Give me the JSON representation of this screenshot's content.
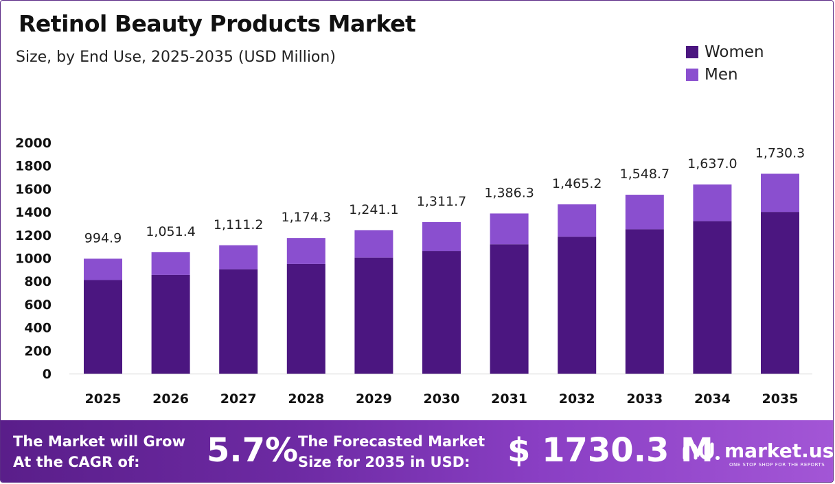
{
  "header": {
    "title": "Retinol Beauty Products Market",
    "subtitle": "Size, by End Use, 2025-2035 (USD Million)"
  },
  "legend": [
    {
      "label": "Women",
      "color": "#4b1680"
    },
    {
      "label": "Men",
      "color": "#8a4fcf"
    }
  ],
  "chart_data": {
    "type": "bar",
    "stacked": true,
    "categories": [
      "2025",
      "2026",
      "2027",
      "2028",
      "2029",
      "2030",
      "2031",
      "2032",
      "2033",
      "2034",
      "2035"
    ],
    "series": [
      {
        "name": "Women",
        "color": "#4b1680",
        "values": [
          810,
          855,
          903,
          950,
          1005,
          1062,
          1120,
          1185,
          1250,
          1320,
          1400
        ]
      },
      {
        "name": "Men",
        "color": "#8a4fcf",
        "values": [
          184.9,
          196.4,
          208.2,
          224.3,
          236.1,
          249.7,
          266.3,
          280.2,
          298.7,
          317.0,
          330.3
        ]
      }
    ],
    "totals": [
      "994.9",
      "1,051.4",
      "1,111.2",
      "1,174.3",
      "1,241.1",
      "1,311.7",
      "1,386.3",
      "1,465.2",
      "1,548.7",
      "1,637.0",
      "1,730.3"
    ],
    "yticks": [
      0,
      200,
      400,
      600,
      800,
      1000,
      1200,
      1400,
      1600,
      1800,
      2000
    ],
    "ylim": [
      0,
      2000
    ],
    "grid": false,
    "legend_position": "top-right"
  },
  "footer": {
    "cagr_label": "The Market will Grow\nAt the CAGR of:",
    "cagr_value": "5.7%",
    "forecast_label": "The Forecasted Market\nSize for 2035 in USD:",
    "forecast_value": "$ 1730.3 M",
    "brand": "market.us",
    "tagline": "ONE STOP SHOP FOR THE REPORTS"
  }
}
